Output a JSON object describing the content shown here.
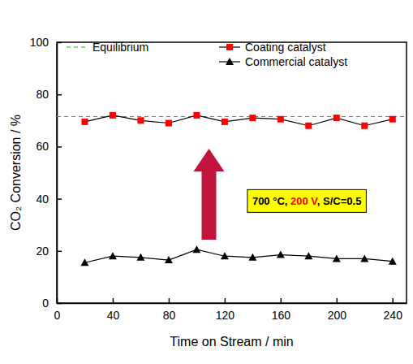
{
  "chart_data": {
    "type": "line",
    "x_label": "Time on Stream / min",
    "y_label": "CO₂ Conversion / %",
    "x": [
      20,
      40,
      60,
      80,
      100,
      120,
      140,
      160,
      180,
      200,
      220,
      240
    ],
    "xlim": [
      0,
      250
    ],
    "xticks": [
      0,
      40,
      80,
      120,
      160,
      200,
      240
    ],
    "ylim": [
      0,
      100
    ],
    "yticks": [
      0,
      20,
      40,
      60,
      80,
      100
    ],
    "grid": false,
    "legend": "top",
    "series": [
      {
        "name": "Equilibrium",
        "color": "#00cc00",
        "line_style": "dashed",
        "marker": "none",
        "x": [
          0,
          250
        ],
        "values": [
          71.5,
          71.5
        ]
      },
      {
        "name": "Coating catalyst",
        "color": "#ff0000",
        "line_style": "solid",
        "marker": "square",
        "values": [
          69.5,
          72,
          70,
          69,
          72,
          69.5,
          71,
          70.5,
          68,
          71,
          68,
          70.5
        ]
      },
      {
        "name": "Commercial catalyst",
        "color": "#000000",
        "line_style": "solid",
        "marker": "triangle",
        "values": [
          15.5,
          18,
          17.5,
          16.5,
          20.5,
          18,
          17.5,
          18.5,
          18,
          17,
          17,
          16
        ]
      }
    ],
    "annotation": {
      "parts": [
        {
          "text": "700 °C, ",
          "color": "#000000"
        },
        {
          "text": "200 V",
          "color": "#ff0000"
        },
        {
          "text": ", S/C=0.5",
          "color": "#000000"
        }
      ]
    }
  }
}
